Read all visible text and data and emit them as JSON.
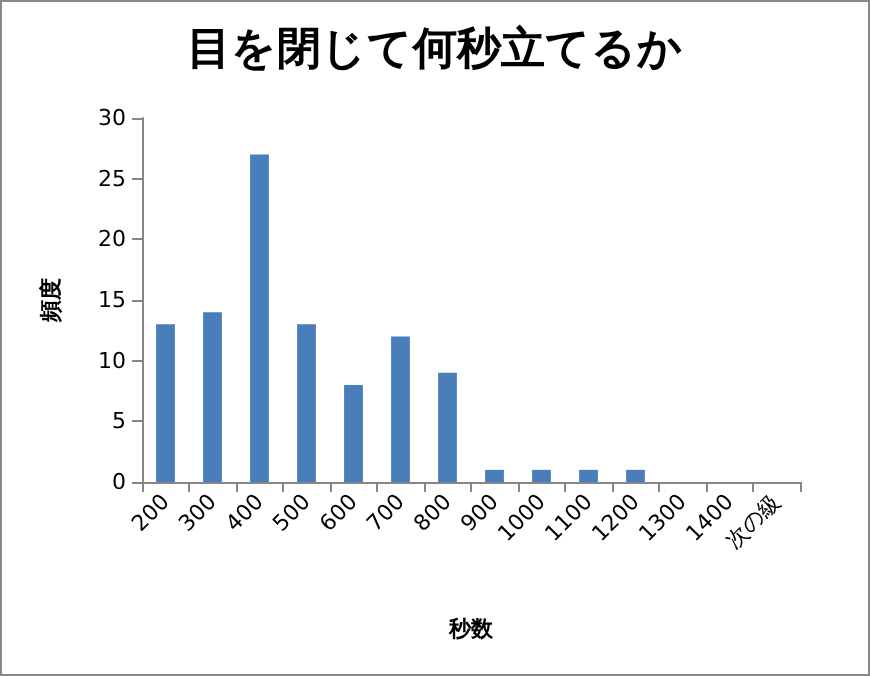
{
  "chart_data": {
    "type": "bar",
    "title": "目を閉じて何秒立てるか",
    "xlabel": "秒数",
    "ylabel": "頻度",
    "categories": [
      "200",
      "300",
      "400",
      "500",
      "600",
      "700",
      "800",
      "900",
      "1000",
      "1100",
      "1200",
      "1300",
      "1400",
      "次の級"
    ],
    "values": [
      13,
      14,
      27,
      13,
      8,
      12,
      9,
      1,
      1,
      1,
      1,
      0,
      0,
      0
    ],
    "color": "#4a7ebb",
    "ylim": [
      0,
      30
    ],
    "yticks": [
      0,
      5,
      10,
      15,
      20,
      25,
      30
    ],
    "grid": false
  }
}
